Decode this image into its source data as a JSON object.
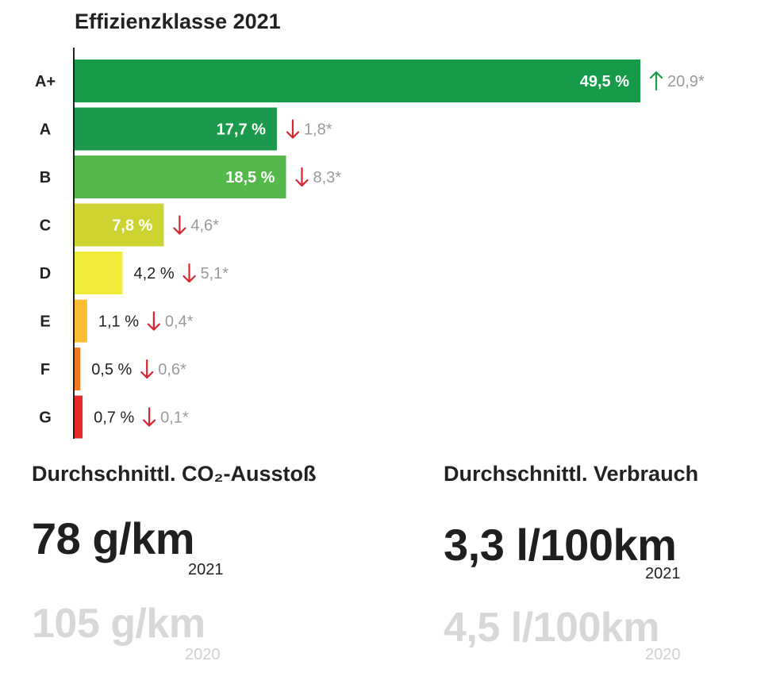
{
  "chart_data": {
    "type": "bar",
    "orientation": "horizontal",
    "title": "Effizienzklasse 2021",
    "categories": [
      "A+",
      "A",
      "B",
      "C",
      "D",
      "E",
      "F",
      "G"
    ],
    "values": [
      49.5,
      17.7,
      18.5,
      7.8,
      4.2,
      1.1,
      0.5,
      0.7
    ],
    "value_labels": [
      "49,5 %",
      "17,7 %",
      "18,5 %",
      "7,8 %",
      "4,2 %",
      "1,1 %",
      "0,5 %",
      "0,7 %"
    ],
    "changes": [
      {
        "direction": "up",
        "label": "20,9*"
      },
      {
        "direction": "down",
        "label": "1,8*"
      },
      {
        "direction": "down",
        "label": "8,3*"
      },
      {
        "direction": "down",
        "label": "4,6*"
      },
      {
        "direction": "down",
        "label": "5,1*"
      },
      {
        "direction": "down",
        "label": "0,4*"
      },
      {
        "direction": "down",
        "label": "0,6*"
      },
      {
        "direction": "down",
        "label": "0,1*"
      }
    ],
    "colors": [
      "#169b48",
      "#1a9a4a",
      "#55b84a",
      "#cdd431",
      "#f1eb3a",
      "#fbbb32",
      "#ee7a22",
      "#e52a2a"
    ],
    "label_inside": [
      true,
      true,
      true,
      true,
      false,
      false,
      false,
      false
    ],
    "arrow_colors": {
      "up": "#1f9a4a",
      "down": "#d9232d"
    },
    "change_label_color": "#9a9a9a",
    "xlim": [
      0,
      50
    ],
    "grid": false,
    "legend": "none"
  },
  "stats": {
    "co2": {
      "heading": "Durchschnittl. CO₂-Ausstoß",
      "current_value": "78 g/km",
      "current_year": "2021",
      "previous_value": "105 g/km",
      "previous_year": "2020"
    },
    "consumption": {
      "heading": "Durchschnittl. Verbrauch",
      "current_value": "3,3 l/100km",
      "current_year": "2021",
      "previous_value": "4,5 l/100km",
      "previous_year": "2020"
    }
  }
}
